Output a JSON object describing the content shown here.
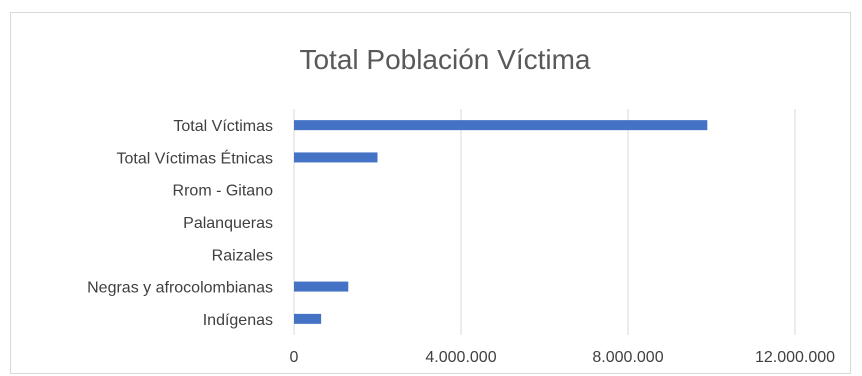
{
  "chart_data": {
    "type": "bar",
    "orientation": "horizontal",
    "title": "Total Población Víctima",
    "categories": [
      "Total Víctimas",
      "Total Víctimas Étnicas",
      "Rrom - Gitano",
      "Palanqueras",
      "Raizales",
      "Negras y afrocolombianas",
      "Indígenas"
    ],
    "values": [
      9900000,
      2000000,
      0,
      0,
      0,
      1300000,
      650000
    ],
    "xlim": [
      0,
      12000000
    ],
    "xticks": [
      0,
      4000000,
      8000000,
      12000000
    ],
    "xtick_labels": [
      "0",
      "4.000.000",
      "8.000.000",
      "12.000.000"
    ],
    "xlabel": "",
    "ylabel": "",
    "grid": "vertical",
    "legend": "none",
    "bar_color": "#4472c4",
    "grid_color": "#d9d9d9"
  }
}
